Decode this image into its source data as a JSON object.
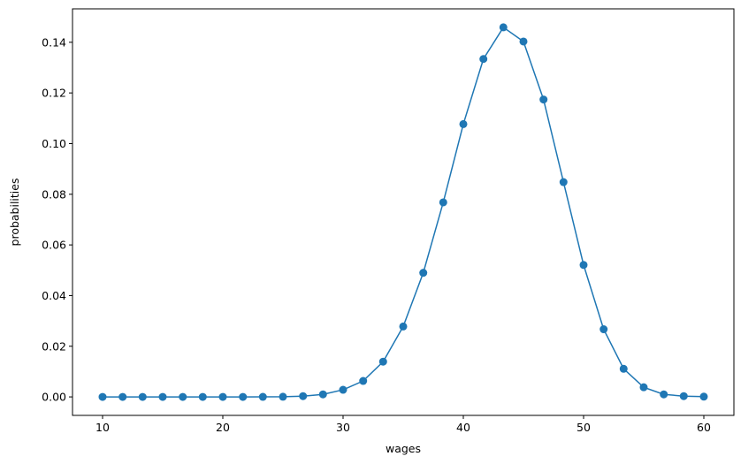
{
  "chart_data": {
    "type": "line",
    "title": "",
    "xlabel": "wages",
    "ylabel": "probabilities",
    "xlim": [
      7.5,
      62.5
    ],
    "ylim": [
      -0.0073,
      0.1532
    ],
    "grid": false,
    "markers": true,
    "color": "#1f77b4",
    "xticks": [
      10,
      20,
      30,
      40,
      50,
      60
    ],
    "xtick_labels": [
      "10",
      "20",
      "30",
      "40",
      "50",
      "60"
    ],
    "yticks": [
      0,
      0.02,
      0.04,
      0.06,
      0.08,
      0.1,
      0.12,
      0.14
    ],
    "ytick_labels": [
      "0.00",
      "0.02",
      "0.04",
      "0.06",
      "0.08",
      "0.10",
      "0.12",
      "0.14"
    ],
    "series": [
      {
        "x": [
          10,
          11.67,
          13.33,
          15,
          16.67,
          18.33,
          20,
          21.67,
          23.33,
          25,
          26.67,
          28.33,
          30,
          31.67,
          33.33,
          35,
          36.67,
          38.33,
          40,
          41.67,
          43.33,
          45,
          46.67,
          48.33,
          50,
          51.67,
          53.33,
          55,
          56.67,
          58.33,
          60
        ],
        "y": [
          0,
          0,
          0,
          0,
          0,
          0,
          0,
          0,
          1e-05,
          5e-05,
          0.0003,
          0.001,
          0.0028,
          0.0063,
          0.0139,
          0.0278,
          0.049,
          0.0768,
          0.1077,
          0.1334,
          0.1459,
          0.1403,
          0.1174,
          0.0848,
          0.0521,
          0.0267,
          0.0111,
          0.0038,
          0.001,
          0.0003,
          0.0001
        ]
      }
    ]
  }
}
